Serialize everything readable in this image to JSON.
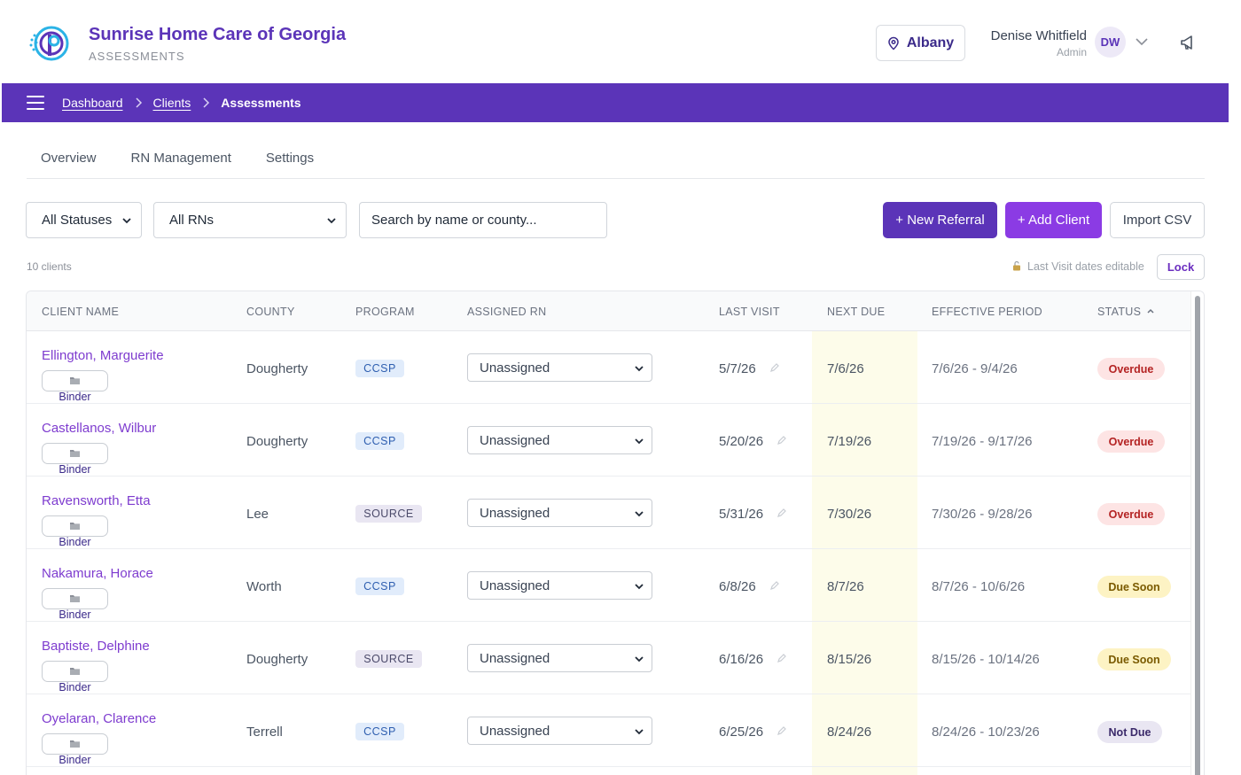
{
  "header": {
    "org_name": "Sunrise Home Care of Georgia",
    "section": "ASSESSMENTS",
    "location": "Albany",
    "user_name": "Denise Whitfield",
    "user_role": "Admin",
    "user_initials": "DW"
  },
  "breadcrumb": {
    "items": [
      "Dashboard",
      "Clients",
      "Assessments"
    ]
  },
  "tabs": [
    "Overview",
    "RN Management",
    "Settings"
  ],
  "filters": {
    "status": "All Statuses",
    "rn": "All RNs",
    "search_placeholder": "Search by name or county..."
  },
  "actions": {
    "new_referral": "+ New Referral",
    "add_client": "+ Add Client",
    "import_csv": "Import CSV"
  },
  "summary": {
    "count": "10 clients",
    "lock_note": "Last Visit dates editable",
    "lock_button": "Lock"
  },
  "table": {
    "columns": [
      "CLIENT NAME",
      "COUNTY",
      "PROGRAM",
      "ASSIGNED RN",
      "LAST VISIT",
      "NEXT DUE",
      "EFFECTIVE PERIOD",
      "STATUS"
    ],
    "binder_label": "Binder",
    "rows": [
      {
        "name": "Ellington, Marguerite",
        "county": "Dougherty",
        "program": "CCSP",
        "rn": "Unassigned",
        "last_visit": "5/7/26",
        "next_due": "7/6/26",
        "period": "7/6/26 - 9/4/26",
        "status": "Overdue"
      },
      {
        "name": "Castellanos, Wilbur",
        "county": "Dougherty",
        "program": "CCSP",
        "rn": "Unassigned",
        "last_visit": "5/20/26",
        "next_due": "7/19/26",
        "period": "7/19/26 - 9/17/26",
        "status": "Overdue"
      },
      {
        "name": "Ravensworth, Etta",
        "county": "Lee",
        "program": "SOURCE",
        "rn": "Unassigned",
        "last_visit": "5/31/26",
        "next_due": "7/30/26",
        "period": "7/30/26 - 9/28/26",
        "status": "Overdue"
      },
      {
        "name": "Nakamura, Horace",
        "county": "Worth",
        "program": "CCSP",
        "rn": "Unassigned",
        "last_visit": "6/8/26",
        "next_due": "8/7/26",
        "period": "8/7/26 - 10/6/26",
        "status": "Due Soon"
      },
      {
        "name": "Baptiste, Delphine",
        "county": "Dougherty",
        "program": "SOURCE",
        "rn": "Unassigned",
        "last_visit": "6/16/26",
        "next_due": "8/15/26",
        "period": "8/15/26 - 10/14/26",
        "status": "Due Soon"
      },
      {
        "name": "Oyelaran, Clarence",
        "county": "Terrell",
        "program": "CCSP",
        "rn": "Unassigned",
        "last_visit": "6/25/26",
        "next_due": "8/24/26",
        "period": "8/24/26 - 10/23/26",
        "status": "Not Due"
      }
    ]
  },
  "colors": {
    "brand": "#5b34b8",
    "accent": "#8b3be4",
    "overdue": "#b42323",
    "due_soon": "#7a5a00",
    "next_due_highlight": "#fdfcea"
  }
}
